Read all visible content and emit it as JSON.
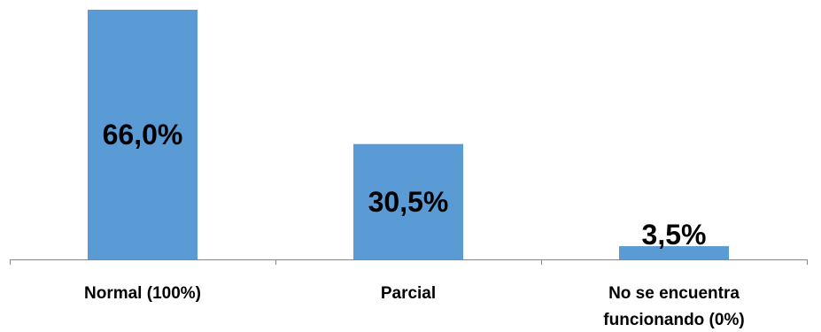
{
  "chart_data": {
    "type": "bar",
    "categories": [
      [
        "Normal (100%)"
      ],
      [
        "Parcial"
      ],
      [
        "No se encuentra",
        "funcionando (0%)"
      ]
    ],
    "values": [
      66.0,
      30.5,
      3.5
    ],
    "data_labels": [
      "66,0%",
      "30,5%",
      "3,5%"
    ],
    "ylim": [
      0,
      66.0
    ],
    "grid": false,
    "bar_color": "#5b9bd5",
    "axis_color": "#868686"
  }
}
